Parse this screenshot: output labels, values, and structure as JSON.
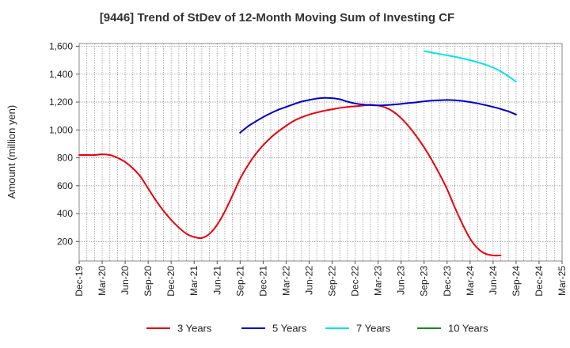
{
  "chart_data": {
    "type": "line",
    "title": "[9446]  Trend of StDev of 12-Month Moving Sum of Investing CF",
    "xlabel": "",
    "ylabel": "Amount (million yen)",
    "ylim": [
      60,
      1620
    ],
    "yticks": [
      200,
      400,
      600,
      800,
      1000,
      1200,
      1400,
      1600
    ],
    "ytick_labels": [
      "200",
      "400",
      "600",
      "800",
      "1,000",
      "1,200",
      "1,400",
      "1,600"
    ],
    "xticks": [
      "Dec-19",
      "Mar-20",
      "Jun-20",
      "Sep-20",
      "Dec-20",
      "Mar-21",
      "Jun-21",
      "Sep-21",
      "Dec-21",
      "Mar-22",
      "Jun-22",
      "Sep-22",
      "Dec-22",
      "Mar-23",
      "Jun-23",
      "Sep-23",
      "Dec-23",
      "Mar-24",
      "Jun-24",
      "Sep-24",
      "Dec-24",
      "Mar-25"
    ],
    "grid": true,
    "legend_position": "bottom",
    "series": [
      {
        "name": "3 Years",
        "color": "#e8000b",
        "start": "Dec-19",
        "values": [
          820,
          820,
          820,
          825,
          820,
          800,
          770,
          725,
          665,
          580,
          495,
          420,
          355,
          300,
          255,
          232,
          225,
          255,
          320,
          415,
          530,
          650,
          745,
          825,
          890,
          945,
          990,
          1030,
          1065,
          1090,
          1110,
          1125,
          1138,
          1148,
          1158,
          1165,
          1170,
          1175,
          1180,
          1175,
          1160,
          1130,
          1085,
          1025,
          955,
          875,
          785,
          685,
          575,
          445,
          325,
          220,
          150,
          112,
          100,
          100
        ]
      },
      {
        "name": "5 Years",
        "color": "#0000c8",
        "start": "Sep-21",
        "values": [
          980,
          1025,
          1060,
          1092,
          1120,
          1145,
          1165,
          1185,
          1203,
          1215,
          1225,
          1230,
          1228,
          1220,
          1203,
          1190,
          1182,
          1178,
          1176,
          1178,
          1182,
          1187,
          1193,
          1198,
          1205,
          1210,
          1213,
          1215,
          1213,
          1208,
          1200,
          1190,
          1178,
          1165,
          1150,
          1133,
          1110
        ]
      },
      {
        "name": "7 Years",
        "color": "#00e5e5",
        "start": "Sep-23",
        "values": [
          1565,
          1555,
          1545,
          1535,
          1525,
          1513,
          1500,
          1485,
          1468,
          1447,
          1420,
          1385,
          1345
        ]
      },
      {
        "name": "10 Years",
        "color": "#1a8a1a",
        "start": "Sep-24",
        "values": []
      }
    ]
  }
}
